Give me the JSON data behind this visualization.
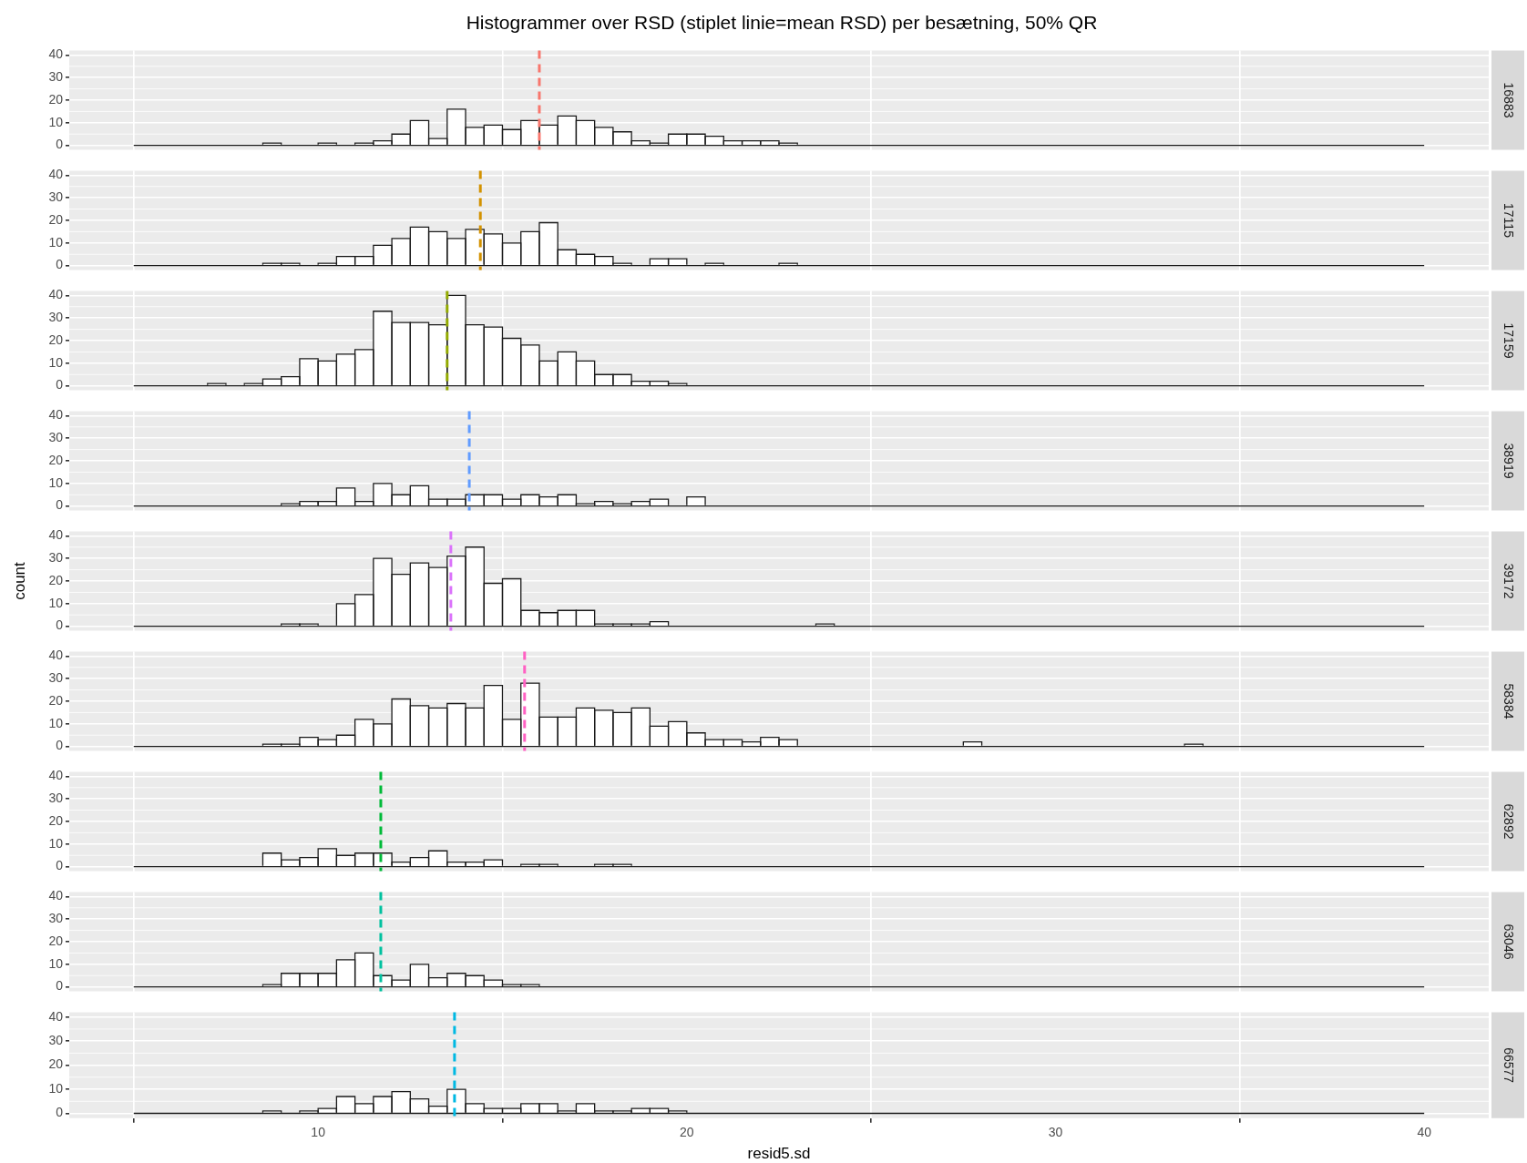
{
  "chart_data": [
    {
      "type": "histogram",
      "title": "Histogrammer over RSD (stiplet linie=mean RSD) per besætning, 50% QR",
      "y2label": "16883",
      "color": "#ffffff",
      "bins": [
        5,
        5.5,
        6,
        6.5,
        7,
        7.5,
        8,
        8.5,
        9,
        9.5,
        10,
        10.5,
        11,
        11.5,
        12,
        12.5,
        13,
        13.5,
        14,
        14.5,
        15,
        15.5,
        16,
        16.5,
        17,
        17.5,
        18,
        18.5,
        19,
        19.5,
        20,
        20.5,
        21,
        21.5,
        22,
        22.5,
        23,
        23.5,
        24,
        24.5,
        25,
        25.5,
        26,
        26.5,
        27,
        27.5,
        28,
        28.5,
        29,
        29.5,
        30,
        30.5,
        31,
        31.5,
        32,
        32.5,
        33,
        33.5,
        34,
        34.5,
        35,
        35.5,
        36,
        36.5,
        37,
        37.5,
        38,
        38.5,
        39,
        39.5,
        40
      ],
      "values": [
        0,
        0,
        0,
        0,
        0,
        0,
        0,
        1,
        0,
        0,
        1,
        0,
        1,
        2,
        5,
        11,
        3,
        16,
        8,
        9,
        7,
        11,
        9,
        13,
        11,
        8,
        6,
        2,
        1,
        5,
        5,
        4,
        2,
        2,
        2,
        1,
        0,
        0,
        0,
        0,
        0,
        0,
        0,
        0,
        0,
        0,
        0,
        0,
        0,
        0,
        0,
        0,
        0,
        0,
        0,
        0,
        0,
        0,
        0,
        0,
        0,
        0,
        0,
        0,
        0,
        0,
        0,
        0,
        0,
        0
      ],
      "ref_lines": [
        {
          "axis": "x",
          "value": 16.0,
          "color": "#f8766d",
          "line_style": "dashed"
        }
      ],
      "xlim": [
        3.25,
        41.75
      ],
      "ylim": [
        -2,
        42
      ],
      "xticks": [
        10,
        20,
        30,
        40
      ],
      "yticks": [
        0,
        10,
        20,
        30,
        40
      ],
      "grid": true,
      "tick_labels": "y"
    },
    {
      "type": "histogram",
      "y2label": "17115",
      "color": "#ffffff",
      "bins": [
        5,
        5.5,
        6,
        6.5,
        7,
        7.5,
        8,
        8.5,
        9,
        9.5,
        10,
        10.5,
        11,
        11.5,
        12,
        12.5,
        13,
        13.5,
        14,
        14.5,
        15,
        15.5,
        16,
        16.5,
        17,
        17.5,
        18,
        18.5,
        19,
        19.5,
        20,
        20.5,
        21,
        21.5,
        22,
        22.5,
        23,
        23.5,
        24,
        24.5,
        25,
        25.5,
        26,
        26.5,
        27,
        27.5,
        28,
        28.5,
        29,
        29.5,
        30,
        30.5,
        31,
        31.5,
        32,
        32.5,
        33,
        33.5,
        34,
        34.5,
        35,
        35.5,
        36,
        36.5,
        37,
        37.5,
        38,
        38.5,
        39,
        39.5,
        40
      ],
      "values": [
        0,
        0,
        0,
        0,
        0,
        0,
        0,
        1,
        1,
        0,
        1,
        4,
        4,
        9,
        12,
        17,
        15,
        12,
        16,
        14,
        10,
        15,
        19,
        7,
        5,
        4,
        1,
        0,
        3,
        3,
        0,
        1,
        0,
        0,
        0,
        1,
        0,
        0,
        0,
        0,
        0,
        0,
        0,
        0,
        0,
        0,
        0,
        0,
        0,
        0,
        0,
        0,
        0,
        0,
        0,
        0,
        0,
        0,
        0,
        0,
        0,
        0,
        0,
        0,
        0,
        0,
        0,
        0,
        0,
        0
      ],
      "ref_lines": [
        {
          "axis": "x",
          "value": 14.4,
          "color": "#d39200",
          "line_style": "dashed"
        }
      ],
      "xlim": [
        3.25,
        41.75
      ],
      "ylim": [
        -2,
        42
      ],
      "xticks": [
        10,
        20,
        30,
        40
      ],
      "yticks": [
        0,
        10,
        20,
        30,
        40
      ],
      "grid": true,
      "tick_labels": "y"
    },
    {
      "type": "histogram",
      "y2label": "17159",
      "color": "#ffffff",
      "bins": [
        5,
        5.5,
        6,
        6.5,
        7,
        7.5,
        8,
        8.5,
        9,
        9.5,
        10,
        10.5,
        11,
        11.5,
        12,
        12.5,
        13,
        13.5,
        14,
        14.5,
        15,
        15.5,
        16,
        16.5,
        17,
        17.5,
        18,
        18.5,
        19,
        19.5,
        20,
        20.5,
        21,
        21.5,
        22,
        22.5,
        23,
        23.5,
        24,
        24.5,
        25,
        25.5,
        26,
        26.5,
        27,
        27.5,
        28,
        28.5,
        29,
        29.5,
        30,
        30.5,
        31,
        31.5,
        32,
        32.5,
        33,
        33.5,
        34,
        34.5,
        35,
        35.5,
        36,
        36.5,
        37,
        37.5,
        38,
        38.5,
        39,
        39.5,
        40
      ],
      "values": [
        0,
        0,
        0,
        0,
        1,
        0,
        1,
        3,
        4,
        12,
        11,
        14,
        16,
        33,
        28,
        28,
        27,
        40,
        27,
        26,
        21,
        18,
        11,
        15,
        11,
        5,
        5,
        2,
        2,
        1,
        0,
        0,
        0,
        0,
        0,
        0,
        0,
        0,
        0,
        0,
        0,
        0,
        0,
        0,
        0,
        0,
        0,
        0,
        0,
        0,
        0,
        0,
        0,
        0,
        0,
        0,
        0,
        0,
        0,
        0,
        0,
        0,
        0,
        0,
        0,
        0,
        0,
        0,
        0,
        0
      ],
      "ref_lines": [
        {
          "axis": "x",
          "value": 13.5,
          "color": "#93aa00",
          "line_style": "dashed"
        }
      ],
      "xlim": [
        3.25,
        41.75
      ],
      "ylim": [
        -2,
        42
      ],
      "xticks": [
        10,
        20,
        30,
        40
      ],
      "yticks": [
        0,
        10,
        20,
        30,
        40
      ],
      "grid": true,
      "tick_labels": "y"
    },
    {
      "type": "histogram",
      "y2label": "38919",
      "color": "#ffffff",
      "bins": [
        5,
        5.5,
        6,
        6.5,
        7,
        7.5,
        8,
        8.5,
        9,
        9.5,
        10,
        10.5,
        11,
        11.5,
        12,
        12.5,
        13,
        13.5,
        14,
        14.5,
        15,
        15.5,
        16,
        16.5,
        17,
        17.5,
        18,
        18.5,
        19,
        19.5,
        20,
        20.5,
        21,
        21.5,
        22,
        22.5,
        23,
        23.5,
        24,
        24.5,
        25,
        25.5,
        26,
        26.5,
        27,
        27.5,
        28,
        28.5,
        29,
        29.5,
        30,
        30.5,
        31,
        31.5,
        32,
        32.5,
        33,
        33.5,
        34,
        34.5,
        35,
        35.5,
        36,
        36.5,
        37,
        37.5,
        38,
        38.5,
        39,
        39.5,
        40
      ],
      "values": [
        0,
        0,
        0,
        0,
        0,
        0,
        0,
        0,
        1,
        2,
        2,
        8,
        2,
        10,
        5,
        9,
        3,
        3,
        5,
        5,
        3,
        5,
        4,
        5,
        1,
        2,
        1,
        2,
        3,
        0,
        4,
        0,
        0,
        0,
        0,
        0,
        0,
        0,
        0,
        0,
        0,
        0,
        0,
        0,
        0,
        0,
        0,
        0,
        0,
        0,
        0,
        0,
        0,
        0,
        0,
        0,
        0,
        0,
        0,
        0,
        0,
        0,
        0,
        0,
        0,
        0,
        0,
        0,
        0,
        0
      ],
      "ref_lines": [
        {
          "axis": "x",
          "value": 14.1,
          "color": "#619cff",
          "line_style": "dashed"
        }
      ],
      "xlim": [
        3.25,
        41.75
      ],
      "ylim": [
        -2,
        42
      ],
      "xticks": [
        10,
        20,
        30,
        40
      ],
      "yticks": [
        0,
        10,
        20,
        30,
        40
      ],
      "grid": true,
      "tick_labels": "y"
    },
    {
      "type": "histogram",
      "y2label": "39172",
      "ylabel": "count",
      "color": "#ffffff",
      "bins": [
        5,
        5.5,
        6,
        6.5,
        7,
        7.5,
        8,
        8.5,
        9,
        9.5,
        10,
        10.5,
        11,
        11.5,
        12,
        12.5,
        13,
        13.5,
        14,
        14.5,
        15,
        15.5,
        16,
        16.5,
        17,
        17.5,
        18,
        18.5,
        19,
        19.5,
        20,
        20.5,
        21,
        21.5,
        22,
        22.5,
        23,
        23.5,
        24,
        24.5,
        25,
        25.5,
        26,
        26.5,
        27,
        27.5,
        28,
        28.5,
        29,
        29.5,
        30,
        30.5,
        31,
        31.5,
        32,
        32.5,
        33,
        33.5,
        34,
        34.5,
        35,
        35.5,
        36,
        36.5,
        37,
        37.5,
        38,
        38.5,
        39,
        39.5,
        40
      ],
      "values": [
        0,
        0,
        0,
        0,
        0,
        0,
        0,
        0,
        1,
        1,
        0,
        10,
        14,
        30,
        23,
        28,
        26,
        31,
        35,
        19,
        21,
        7,
        6,
        7,
        7,
        1,
        1,
        1,
        2,
        0,
        0,
        0,
        0,
        0,
        0,
        0,
        0,
        1,
        0,
        0,
        0,
        0,
        0,
        0,
        0,
        0,
        0,
        0,
        0,
        0,
        0,
        0,
        0,
        0,
        0,
        0,
        0,
        0,
        0,
        0,
        0,
        0,
        0,
        0,
        0,
        0,
        0,
        0,
        0,
        0
      ],
      "ref_lines": [
        {
          "axis": "x",
          "value": 13.6,
          "color": "#db72fb",
          "line_style": "dashed"
        }
      ],
      "xlim": [
        3.25,
        41.75
      ],
      "ylim": [
        -2,
        42
      ],
      "xticks": [
        10,
        20,
        30,
        40
      ],
      "yticks": [
        0,
        10,
        20,
        30,
        40
      ],
      "grid": true,
      "tick_labels": "y"
    },
    {
      "type": "histogram",
      "y2label": "58384",
      "color": "#ffffff",
      "bins": [
        5,
        5.5,
        6,
        6.5,
        7,
        7.5,
        8,
        8.5,
        9,
        9.5,
        10,
        10.5,
        11,
        11.5,
        12,
        12.5,
        13,
        13.5,
        14,
        14.5,
        15,
        15.5,
        16,
        16.5,
        17,
        17.5,
        18,
        18.5,
        19,
        19.5,
        20,
        20.5,
        21,
        21.5,
        22,
        22.5,
        23,
        23.5,
        24,
        24.5,
        25,
        25.5,
        26,
        26.5,
        27,
        27.5,
        28,
        28.5,
        29,
        29.5,
        30,
        30.5,
        31,
        31.5,
        32,
        32.5,
        33,
        33.5,
        34,
        34.5,
        35,
        35.5,
        36,
        36.5,
        37,
        37.5,
        38,
        38.5,
        39,
        39.5,
        40
      ],
      "values": [
        0,
        0,
        0,
        0,
        0,
        0,
        0,
        1,
        1,
        4,
        3,
        5,
        12,
        10,
        21,
        18,
        17,
        19,
        17,
        27,
        12,
        28,
        13,
        13,
        17,
        16,
        15,
        17,
        9,
        11,
        6,
        3,
        3,
        2,
        4,
        3,
        0,
        0,
        0,
        0,
        0,
        0,
        0,
        0,
        0,
        2,
        0,
        0,
        0,
        0,
        0,
        0,
        0,
        0,
        0,
        0,
        0,
        1,
        0,
        0,
        0,
        0,
        0,
        0,
        0,
        0,
        0,
        0,
        0,
        0
      ],
      "ref_lines": [
        {
          "axis": "x",
          "value": 15.6,
          "color": "#ff61c3",
          "line_style": "dashed"
        }
      ],
      "xlim": [
        3.25,
        41.75
      ],
      "ylim": [
        -2,
        42
      ],
      "xticks": [
        10,
        20,
        30,
        40
      ],
      "yticks": [
        0,
        10,
        20,
        30,
        40
      ],
      "grid": true,
      "tick_labels": "y"
    },
    {
      "type": "histogram",
      "y2label": "62892",
      "color": "#ffffff",
      "bins": [
        5,
        5.5,
        6,
        6.5,
        7,
        7.5,
        8,
        8.5,
        9,
        9.5,
        10,
        10.5,
        11,
        11.5,
        12,
        12.5,
        13,
        13.5,
        14,
        14.5,
        15,
        15.5,
        16,
        16.5,
        17,
        17.5,
        18,
        18.5,
        19,
        19.5,
        20,
        20.5,
        21,
        21.5,
        22,
        22.5,
        23,
        23.5,
        24,
        24.5,
        25,
        25.5,
        26,
        26.5,
        27,
        27.5,
        28,
        28.5,
        29,
        29.5,
        30,
        30.5,
        31,
        31.5,
        32,
        32.5,
        33,
        33.5,
        34,
        34.5,
        35,
        35.5,
        36,
        36.5,
        37,
        37.5,
        38,
        38.5,
        39,
        39.5,
        40
      ],
      "values": [
        0,
        0,
        0,
        0,
        0,
        0,
        0,
        6,
        3,
        4,
        8,
        5,
        6,
        6,
        2,
        4,
        7,
        2,
        2,
        3,
        0,
        1,
        1,
        0,
        0,
        1,
        1,
        0,
        0,
        0,
        0,
        0,
        0,
        0,
        0,
        0,
        0,
        0,
        0,
        0,
        0,
        0,
        0,
        0,
        0,
        0,
        0,
        0,
        0,
        0,
        0,
        0,
        0,
        0,
        0,
        0,
        0,
        0,
        0,
        0,
        0,
        0,
        0,
        0,
        0,
        0,
        0,
        0,
        0,
        0
      ],
      "ref_lines": [
        {
          "axis": "x",
          "value": 11.7,
          "color": "#00ba38",
          "line_style": "dashed"
        }
      ],
      "xlim": [
        3.25,
        41.75
      ],
      "ylim": [
        -2,
        42
      ],
      "xticks": [
        10,
        20,
        30,
        40
      ],
      "yticks": [
        0,
        10,
        20,
        30,
        40
      ],
      "grid": true,
      "tick_labels": "y"
    },
    {
      "type": "histogram",
      "y2label": "63046",
      "color": "#ffffff",
      "bins": [
        5,
        5.5,
        6,
        6.5,
        7,
        7.5,
        8,
        8.5,
        9,
        9.5,
        10,
        10.5,
        11,
        11.5,
        12,
        12.5,
        13,
        13.5,
        14,
        14.5,
        15,
        15.5,
        16,
        16.5,
        17,
        17.5,
        18,
        18.5,
        19,
        19.5,
        20,
        20.5,
        21,
        21.5,
        22,
        22.5,
        23,
        23.5,
        24,
        24.5,
        25,
        25.5,
        26,
        26.5,
        27,
        27.5,
        28,
        28.5,
        29,
        29.5,
        30,
        30.5,
        31,
        31.5,
        32,
        32.5,
        33,
        33.5,
        34,
        34.5,
        35,
        35.5,
        36,
        36.5,
        37,
        37.5,
        38,
        38.5,
        39,
        39.5,
        40
      ],
      "values": [
        0,
        0,
        0,
        0,
        0,
        0,
        0,
        1,
        6,
        6,
        6,
        12,
        15,
        5,
        3,
        10,
        4,
        6,
        5,
        3,
        1,
        1,
        0,
        0,
        0,
        0,
        0,
        0,
        0,
        0,
        0,
        0,
        0,
        0,
        0,
        0,
        0,
        0,
        0,
        0,
        0,
        0,
        0,
        0,
        0,
        0,
        0,
        0,
        0,
        0,
        0,
        0,
        0,
        0,
        0,
        0,
        0,
        0,
        0,
        0,
        0,
        0,
        0,
        0,
        0,
        0,
        0,
        0,
        0,
        0
      ],
      "ref_lines": [
        {
          "axis": "x",
          "value": 11.7,
          "color": "#00c19f",
          "line_style": "dashed"
        }
      ],
      "xlim": [
        3.25,
        41.75
      ],
      "ylim": [
        -2,
        42
      ],
      "xticks": [
        10,
        20,
        30,
        40
      ],
      "yticks": [
        0,
        10,
        20,
        30,
        40
      ],
      "grid": true,
      "tick_labels": "y"
    },
    {
      "type": "histogram",
      "y2label": "66577",
      "xlabel": "resid5.sd",
      "color": "#ffffff",
      "bins": [
        5,
        5.5,
        6,
        6.5,
        7,
        7.5,
        8,
        8.5,
        9,
        9.5,
        10,
        10.5,
        11,
        11.5,
        12,
        12.5,
        13,
        13.5,
        14,
        14.5,
        15,
        15.5,
        16,
        16.5,
        17,
        17.5,
        18,
        18.5,
        19,
        19.5,
        20,
        20.5,
        21,
        21.5,
        22,
        22.5,
        23,
        23.5,
        24,
        24.5,
        25,
        25.5,
        26,
        26.5,
        27,
        27.5,
        28,
        28.5,
        29,
        29.5,
        30,
        30.5,
        31,
        31.5,
        32,
        32.5,
        33,
        33.5,
        34,
        34.5,
        35,
        35.5,
        36,
        36.5,
        37,
        37.5,
        38,
        38.5,
        39,
        39.5,
        40
      ],
      "values": [
        0,
        0,
        0,
        0,
        0,
        0,
        0,
        1,
        0,
        1,
        2,
        7,
        4,
        7,
        9,
        6,
        3,
        10,
        4,
        2,
        2,
        4,
        4,
        1,
        4,
        1,
        1,
        2,
        2,
        1,
        0,
        0,
        0,
        0,
        0,
        0,
        0,
        0,
        0,
        0,
        0,
        0,
        0,
        0,
        0,
        0,
        0,
        0,
        0,
        0,
        0,
        0,
        0,
        0,
        0,
        0,
        0,
        0,
        0,
        0,
        0,
        0,
        0,
        0,
        0,
        0,
        0,
        0,
        0,
        0
      ],
      "ref_lines": [
        {
          "axis": "x",
          "value": 13.7,
          "color": "#00b9e3",
          "line_style": "dashed"
        }
      ],
      "xlim": [
        3.25,
        41.75
      ],
      "ylim": [
        -2,
        42
      ],
      "xticks": [
        10,
        20,
        30,
        40
      ],
      "yticks": [
        0,
        10,
        20,
        30,
        40
      ],
      "grid": true
    }
  ]
}
